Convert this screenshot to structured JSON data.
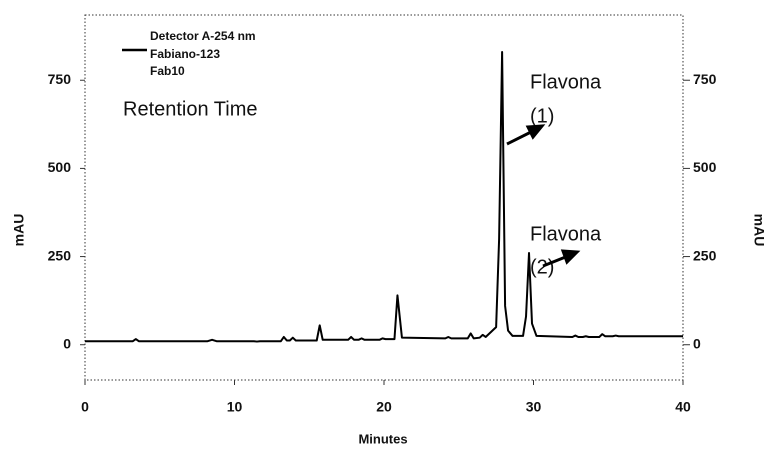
{
  "chart_data": {
    "type": "line",
    "legend_title": "Detector A-254 nm",
    "legend_note": "Fab10",
    "x_label": "Minutes",
    "y_label": "mAU",
    "y2_label": "mAU",
    "annotations": [
      {
        "lines": [
          "Retention Time"
        ]
      },
      {
        "lines": [
          "Flavona",
          "(1)"
        ]
      },
      {
        "lines": [
          "Flavona",
          "(2)"
        ]
      }
    ],
    "x": [
      0,
      3.2,
      3.4,
      3.6,
      8.2,
      8.5,
      8.8,
      11.3,
      11.5,
      11.7,
      13.1,
      13.3,
      13.5,
      13.7,
      13.9,
      14.1,
      15.5,
      15.7,
      15.9,
      17.6,
      17.8,
      18.0,
      18.3,
      18.5,
      18.7,
      19.7,
      19.9,
      20.1,
      20.7,
      20.9,
      21.2,
      24.1,
      24.3,
      24.5,
      25.6,
      25.8,
      26.0,
      26.4,
      26.6,
      26.8,
      27.5,
      27.7,
      27.9,
      28.1,
      28.3,
      28.6,
      29.3,
      29.5,
      29.7,
      29.9,
      30.2,
      32.6,
      32.8,
      33.0,
      33.3,
      33.5,
      33.7,
      34.4,
      34.6,
      34.8,
      35.3,
      35.5,
      35.7,
      40
    ],
    "series": [
      {
        "name": "Fabiano-123",
        "color": "#000000",
        "values": [
          10,
          10,
          16,
          10,
          10,
          14,
          10,
          10,
          9,
          10,
          10,
          22,
          12,
          12,
          20,
          12,
          12,
          55,
          14,
          14,
          22,
          14,
          14,
          18,
          14,
          14,
          18,
          16,
          16,
          140,
          20,
          18,
          22,
          18,
          18,
          32,
          18,
          20,
          28,
          22,
          50,
          300,
          830,
          110,
          40,
          25,
          25,
          80,
          260,
          60,
          25,
          22,
          26,
          22,
          22,
          24,
          22,
          22,
          30,
          24,
          24,
          26,
          24,
          24
        ]
      }
    ],
    "xlim": [
      0,
      40
    ],
    "xticks": [
      0,
      10,
      20,
      30,
      40
    ],
    "ylim": [
      -100,
      935
    ],
    "yticks": [
      0,
      250,
      500,
      750
    ],
    "y2lim": [
      -100,
      935
    ],
    "y2ticks": [
      0,
      250,
      500,
      750
    ]
  }
}
